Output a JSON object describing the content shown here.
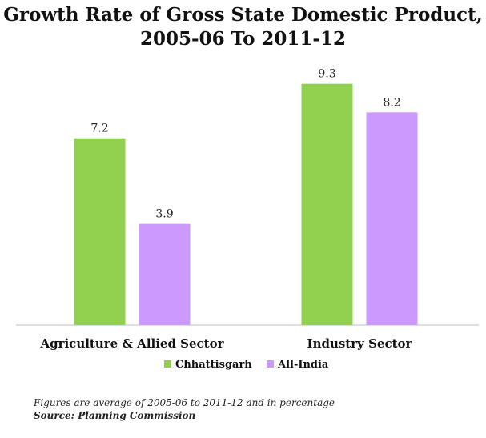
{
  "title": {
    "line1": "Growth Rate of Gross State Domestic Product,",
    "line2": "2005-06 To 2011-12"
  },
  "chart_data": {
    "type": "bar",
    "title": "Growth Rate of Gross State Domestic Product, 2005-06 To 2011-12",
    "categories": [
      "Agriculture & Allied Sector",
      "Industry Sector"
    ],
    "series": [
      {
        "name": "Chhattisgarh",
        "values": [
          7.2,
          9.3
        ],
        "labels": [
          "7.2",
          "9.3"
        ],
        "color": "#92d050"
      },
      {
        "name": "All-India",
        "values": [
          3.9,
          8.2
        ],
        "labels": [
          "3.9",
          "8.2"
        ],
        "color": "#cc99ff"
      }
    ],
    "ylim": [
      0,
      10
    ],
    "grid": false,
    "legend": "bottom",
    "data_labels": true
  },
  "notes": {
    "line1": "Figures are average of 2005-06 to 2011-12 and in percentage",
    "line2": "Source: Planning Commission"
  }
}
